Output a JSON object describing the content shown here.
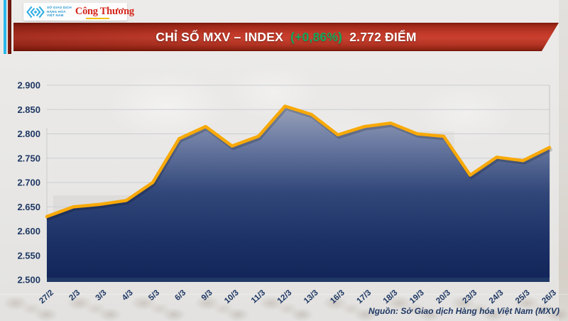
{
  "brand": {
    "exchange_lines": [
      "SỞ GIAO DỊCH",
      "HÀNG HÓA",
      "VIỆT NAM"
    ],
    "newspaper": "Công Thương"
  },
  "banner": {
    "title": "CHỈ SỐ MXV – INDEX",
    "change": "(+0,86%)",
    "value": "2.772 ĐIỂM"
  },
  "source_note": "Nguồn: Sở Giao dịch Hàng hóa Việt Nam (MXV)",
  "chart_data": {
    "type": "area",
    "title": "CHỈ SỐ MXV – INDEX (+0,86%) 2.772 ĐIỂM",
    "categories": [
      "27/2",
      "2/3",
      "3/3",
      "4/3",
      "5/3",
      "6/3",
      "9/3",
      "10/3",
      "11/3",
      "12/3",
      "13/3",
      "16/3",
      "17/3",
      "18/3",
      "19/3",
      "20/3",
      "23/3",
      "24/3",
      "25/3",
      "26/3"
    ],
    "values": [
      2630,
      2650,
      2655,
      2663,
      2700,
      2790,
      2815,
      2775,
      2795,
      2857,
      2840,
      2798,
      2815,
      2822,
      2800,
      2795,
      2715,
      2752,
      2745,
      2772
    ],
    "y_tick_labels": [
      "2.900",
      "2.850",
      "2.800",
      "2.750",
      "2.700",
      "2.650",
      "2.600",
      "2.550",
      "2.500"
    ],
    "y_ticks": [
      2900,
      2850,
      2800,
      2750,
      2700,
      2650,
      2600,
      2550,
      2500
    ],
    "ylim": [
      2500,
      2900
    ],
    "xlabel": "",
    "ylabel": "",
    "unit": "ĐIỂM",
    "latest_value": 2772,
    "change_percent": "+0,86%",
    "grid": true,
    "legend": "none"
  },
  "colors": {
    "banner_red": "#C23B2A",
    "navy": "#1F3864",
    "gold_line": "#F8A908",
    "green_change": "#13A85C",
    "cyan_stripe": "#2BB7EA",
    "maroon_stripe": "#7E1D10",
    "logo_red": "#D6261B",
    "logo_blue": "#2596D1",
    "grid_line": "#CBCED6",
    "fill_top": "#B4B9C6",
    "fill_bottom": "#13255A"
  }
}
